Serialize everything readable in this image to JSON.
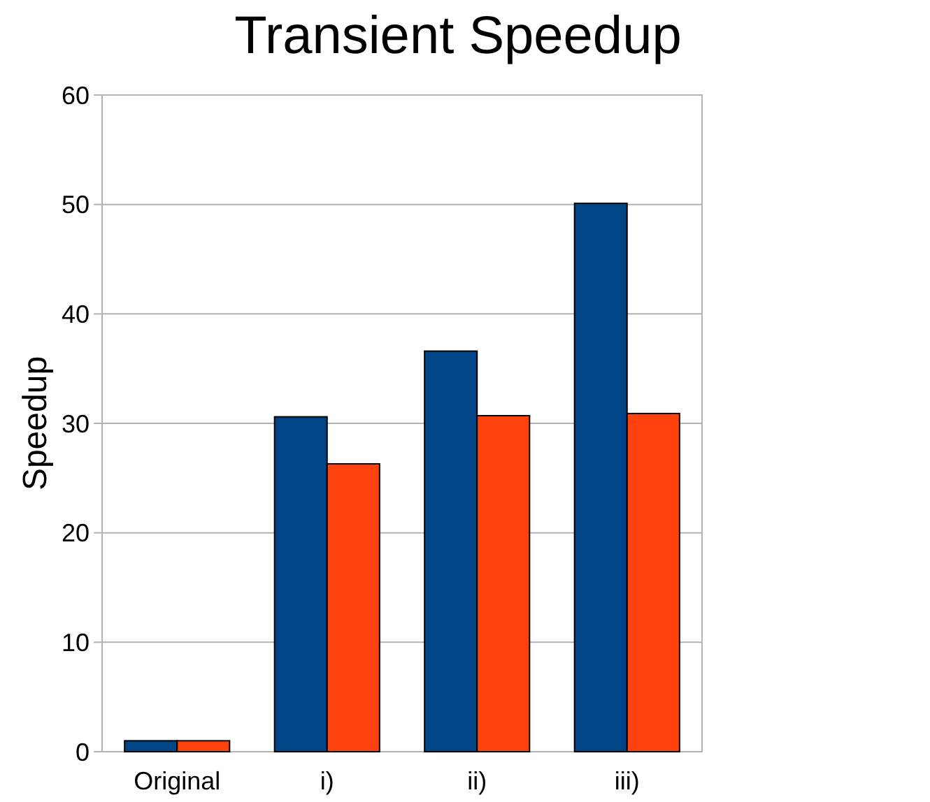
{
  "chart_data": {
    "type": "bar",
    "title": "Transient Speedup",
    "ylabel": "Speedup",
    "categories": [
      "Original",
      "i)",
      "ii)",
      "iii)"
    ],
    "series": [
      {
        "color": "#004586",
        "values": [
          1,
          30.6,
          36.6,
          50.1
        ]
      },
      {
        "color": "#ff420e",
        "values": [
          1,
          26.3,
          30.7,
          30.9
        ]
      }
    ],
    "ylim": [
      0,
      60
    ],
    "yticks": [
      0,
      10,
      20,
      30,
      40,
      50,
      60
    ],
    "grid": "y"
  }
}
